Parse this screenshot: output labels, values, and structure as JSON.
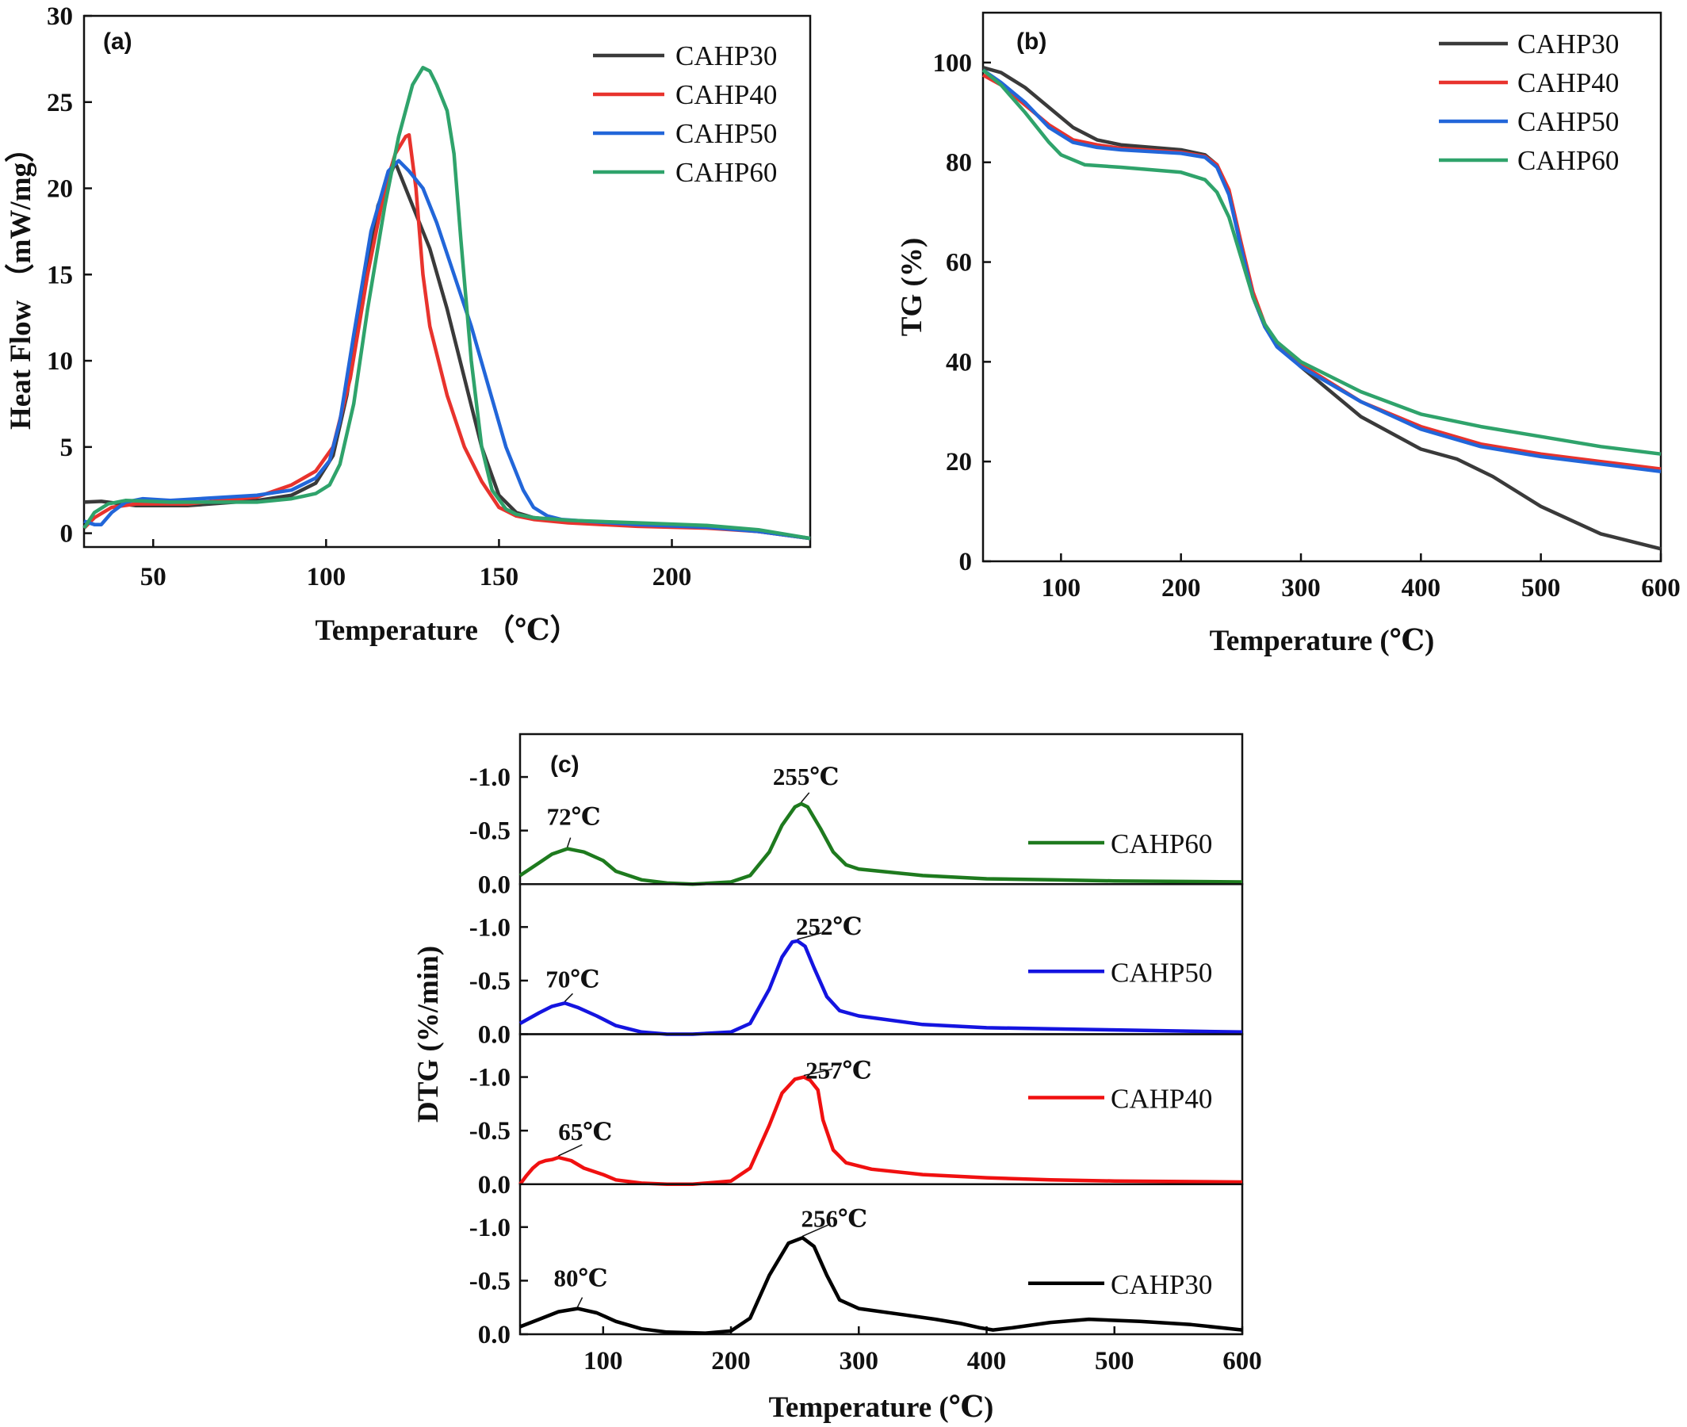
{
  "colors": {
    "CAHP30": "#3a3a3a",
    "CAHP40": "#e8332d",
    "CAHP50": "#2266d9",
    "CAHP60": "#2fa36b",
    "dtg_CAHP60": "#1e7a1e",
    "dtg_CAHP50": "#1414e0",
    "dtg_CAHP40": "#f01010",
    "dtg_CAHP30": "#000000"
  },
  "chart_data": [
    {
      "panel": "(a)",
      "type": "line",
      "xlabel": "Temperature （℃）",
      "ylabel": "Heat Flow （mW/mg）",
      "xlim": [
        30,
        240
      ],
      "ylim": [
        -0.8,
        30
      ],
      "xticks": [
        50,
        100,
        150,
        200
      ],
      "yticks": [
        0,
        5,
        10,
        15,
        20,
        25,
        30
      ],
      "legend": "top-right",
      "series": [
        {
          "name": "CAHP30",
          "x": [
            30,
            35,
            45,
            60,
            80,
            90,
            97,
            102,
            106,
            110,
            115,
            120,
            125,
            130,
            135,
            140,
            145,
            150,
            155,
            160,
            170,
            190,
            210,
            225,
            240
          ],
          "y": [
            1.8,
            1.85,
            1.6,
            1.6,
            1.9,
            2.2,
            2.9,
            4.5,
            8,
            13,
            19,
            21.5,
            19,
            16.5,
            13,
            9,
            5,
            2.2,
            1.2,
            0.9,
            0.7,
            0.55,
            0.4,
            0.1,
            -0.3
          ]
        },
        {
          "name": "CAHP40",
          "x": [
            30,
            33,
            38,
            45,
            60,
            80,
            90,
            97,
            102,
            107,
            112,
            117,
            120,
            123,
            124,
            126,
            128,
            130,
            135,
            140,
            145,
            150,
            155,
            160,
            170,
            190,
            210,
            225,
            240
          ],
          "y": [
            0.3,
            0.9,
            1.5,
            1.7,
            1.7,
            2.1,
            2.8,
            3.6,
            5,
            9,
            15,
            20,
            22,
            23,
            23.1,
            20,
            15,
            12,
            8,
            5,
            3,
            1.5,
            1.0,
            0.8,
            0.6,
            0.4,
            0.3,
            0.1,
            -0.3
          ]
        },
        {
          "name": "CAHP50",
          "x": [
            30,
            33,
            35,
            38,
            42,
            47,
            55,
            80,
            90,
            97,
            101,
            104,
            108,
            113,
            118,
            121,
            124,
            128,
            132,
            137,
            142,
            147,
            152,
            157,
            160,
            164,
            168,
            175,
            190,
            210,
            225,
            240
          ],
          "y": [
            0.7,
            0.5,
            0.5,
            1.2,
            1.8,
            2.0,
            1.9,
            2.2,
            2.5,
            3.2,
            4.2,
            6.5,
            11.5,
            17.5,
            21,
            21.6,
            21,
            20,
            18,
            15,
            12,
            8.5,
            5,
            2.5,
            1.5,
            1.0,
            0.8,
            0.7,
            0.5,
            0.35,
            0.1,
            -0.3
          ]
        },
        {
          "name": "CAHP60",
          "x": [
            30,
            33,
            37,
            42,
            55,
            80,
            90,
            97,
            101,
            104,
            108,
            112,
            117,
            121,
            125,
            128,
            130,
            132,
            135,
            137,
            139,
            142,
            145,
            148,
            152,
            155,
            160,
            170,
            190,
            210,
            225,
            240
          ],
          "y": [
            0.3,
            1.2,
            1.7,
            1.9,
            1.8,
            1.8,
            2.0,
            2.3,
            2.8,
            4,
            7.5,
            13,
            19,
            23,
            26,
            27,
            26.8,
            26,
            24.5,
            22,
            17,
            10,
            5,
            2.5,
            1.4,
            1.1,
            0.9,
            0.75,
            0.6,
            0.45,
            0.2,
            -0.3
          ]
        }
      ]
    },
    {
      "panel": "(b)",
      "type": "line",
      "xlabel": "Temperature (℃)",
      "ylabel": "TG (%)",
      "xlim": [
        35,
        600
      ],
      "ylim": [
        0,
        110
      ],
      "xticks": [
        100,
        200,
        300,
        400,
        500,
        600
      ],
      "yticks": [
        0,
        20,
        40,
        60,
        80,
        100
      ],
      "legend": "top-right",
      "series": [
        {
          "name": "CAHP30",
          "x": [
            35,
            50,
            70,
            90,
            110,
            130,
            150,
            200,
            220,
            230,
            240,
            250,
            260,
            270,
            280,
            300,
            350,
            400,
            430,
            460,
            500,
            550,
            600
          ],
          "y": [
            99,
            98,
            95,
            91,
            87,
            84.5,
            83.5,
            82.5,
            81.5,
            79.5,
            74,
            63,
            53,
            47,
            43.5,
            39,
            29,
            22.5,
            20.5,
            17,
            11,
            5.5,
            2.5
          ]
        },
        {
          "name": "CAHP40",
          "x": [
            35,
            50,
            70,
            90,
            110,
            130,
            150,
            200,
            220,
            230,
            240,
            250,
            260,
            270,
            280,
            300,
            350,
            400,
            450,
            500,
            550,
            600
          ],
          "y": [
            97.5,
            95.5,
            91.5,
            87.5,
            84.5,
            83.5,
            82.8,
            82,
            81.2,
            79.5,
            74.5,
            64,
            54,
            47.5,
            43.5,
            39.5,
            32,
            27,
            23.5,
            21.5,
            20,
            18.5
          ]
        },
        {
          "name": "CAHP50",
          "x": [
            35,
            50,
            70,
            90,
            110,
            130,
            150,
            200,
            220,
            230,
            240,
            250,
            260,
            270,
            280,
            300,
            350,
            400,
            450,
            500,
            550,
            600
          ],
          "y": [
            98.5,
            96,
            92,
            87,
            84,
            83,
            82.5,
            81.8,
            81,
            79,
            73.5,
            63,
            53,
            47,
            43,
            39,
            32,
            26.5,
            23,
            21,
            19.5,
            18
          ]
        },
        {
          "name": "CAHP60",
          "x": [
            35,
            50,
            70,
            90,
            100,
            120,
            150,
            200,
            220,
            230,
            240,
            250,
            260,
            270,
            280,
            300,
            350,
            400,
            450,
            500,
            550,
            600
          ],
          "y": [
            98.5,
            95.5,
            90,
            84,
            81.5,
            79.5,
            79,
            78,
            76.5,
            74,
            69,
            61,
            53,
            47.5,
            44,
            40,
            34,
            29.5,
            27,
            25,
            23,
            21.5
          ]
        }
      ]
    },
    {
      "panel": "(c)",
      "type": "line",
      "xlabel": "Temperature (℃)",
      "ylabel": "DTG (%/min)",
      "xlim": [
        35,
        600
      ],
      "xticks": [
        100,
        200,
        300,
        400,
        500,
        600
      ],
      "yticks": [
        0.0,
        -0.5,
        -1.0
      ],
      "y_inverted": true,
      "stacked": true,
      "legend": "right",
      "series": [
        {
          "name": "CAHP60",
          "ylim": [
            0,
            -1.4
          ],
          "x": [
            35,
            50,
            60,
            72,
            85,
            100,
            110,
            130,
            150,
            170,
            200,
            215,
            230,
            240,
            250,
            255,
            260,
            270,
            280,
            290,
            300,
            350,
            400,
            450,
            500,
            600
          ],
          "y": [
            -0.08,
            -0.2,
            -0.28,
            -0.33,
            -0.3,
            -0.22,
            -0.12,
            -0.04,
            -0.01,
            0.0,
            -0.02,
            -0.08,
            -0.3,
            -0.55,
            -0.72,
            -0.75,
            -0.72,
            -0.52,
            -0.3,
            -0.18,
            -0.14,
            -0.08,
            -0.05,
            -0.04,
            -0.03,
            -0.02
          ]
        },
        {
          "name": "CAHP50",
          "ylim": [
            0,
            -1.4
          ],
          "x": [
            35,
            50,
            60,
            70,
            80,
            95,
            110,
            130,
            150,
            170,
            200,
            215,
            230,
            240,
            248,
            252,
            258,
            265,
            275,
            285,
            300,
            350,
            400,
            450,
            500,
            600
          ],
          "y": [
            -0.1,
            -0.2,
            -0.26,
            -0.29,
            -0.25,
            -0.17,
            -0.08,
            -0.02,
            0.0,
            0.0,
            -0.02,
            -0.1,
            -0.42,
            -0.72,
            -0.86,
            -0.87,
            -0.82,
            -0.62,
            -0.35,
            -0.22,
            -0.17,
            -0.09,
            -0.06,
            -0.05,
            -0.04,
            -0.02
          ]
        },
        {
          "name": "CAHP40",
          "ylim": [
            0,
            -1.4
          ],
          "x": [
            35,
            40,
            45,
            50,
            55,
            60,
            65,
            75,
            85,
            100,
            110,
            130,
            150,
            170,
            200,
            215,
            230,
            240,
            250,
            257,
            262,
            268,
            272,
            280,
            290,
            310,
            350,
            400,
            450,
            500,
            600
          ],
          "y": [
            0.0,
            -0.08,
            -0.15,
            -0.2,
            -0.22,
            -0.23,
            -0.25,
            -0.22,
            -0.15,
            -0.09,
            -0.04,
            -0.01,
            0.0,
            0.0,
            -0.03,
            -0.15,
            -0.55,
            -0.85,
            -0.98,
            -1.0,
            -0.97,
            -0.88,
            -0.6,
            -0.32,
            -0.2,
            -0.14,
            -0.09,
            -0.06,
            -0.04,
            -0.03,
            -0.02
          ]
        },
        {
          "name": "CAHP30",
          "ylim": [
            0,
            -1.4
          ],
          "x": [
            35,
            50,
            65,
            80,
            95,
            110,
            130,
            150,
            180,
            200,
            215,
            230,
            245,
            256,
            265,
            275,
            285,
            300,
            330,
            360,
            380,
            395,
            405,
            420,
            450,
            480,
            520,
            560,
            600
          ],
          "y": [
            -0.07,
            -0.14,
            -0.21,
            -0.24,
            -0.2,
            -0.12,
            -0.05,
            -0.02,
            -0.01,
            -0.03,
            -0.15,
            -0.55,
            -0.85,
            -0.9,
            -0.82,
            -0.55,
            -0.32,
            -0.24,
            -0.19,
            -0.14,
            -0.1,
            -0.06,
            -0.04,
            -0.06,
            -0.11,
            -0.14,
            -0.12,
            -0.09,
            -0.04
          ]
        }
      ],
      "annotations": [
        {
          "series": "CAHP60",
          "text": "72℃",
          "x": 72,
          "y": -0.33
        },
        {
          "series": "CAHP60",
          "text": "255℃",
          "x": 255,
          "y": -0.75
        },
        {
          "series": "CAHP50",
          "text": "70℃",
          "x": 70,
          "y": -0.29
        },
        {
          "series": "CAHP50",
          "text": "252℃",
          "x": 252,
          "y": -0.87
        },
        {
          "series": "CAHP40",
          "text": "65℃",
          "x": 65,
          "y": -0.25
        },
        {
          "series": "CAHP40",
          "text": "257℃",
          "x": 257,
          "y": -1.0
        },
        {
          "series": "CAHP30",
          "text": "80℃",
          "x": 80,
          "y": -0.24
        },
        {
          "series": "CAHP30",
          "text": "256℃",
          "x": 256,
          "y": -0.9
        }
      ]
    }
  ]
}
